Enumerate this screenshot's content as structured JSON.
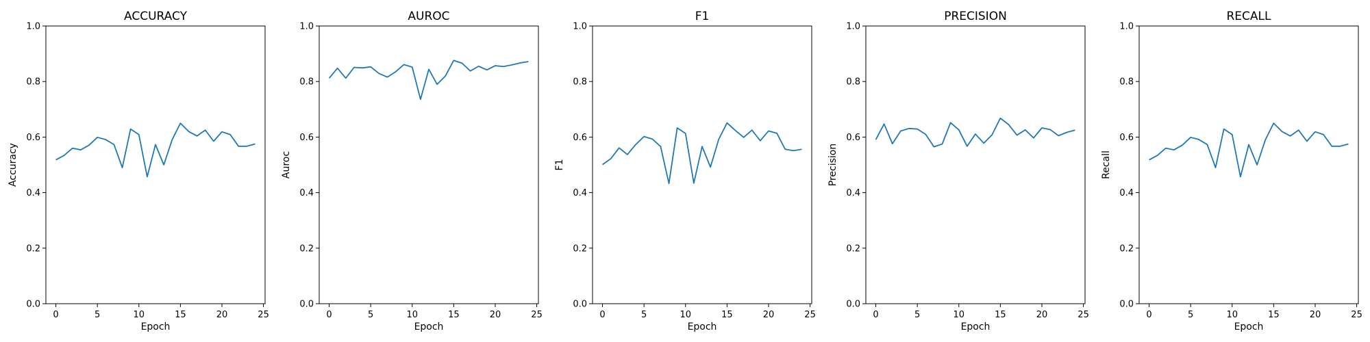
{
  "chart_data": [
    {
      "type": "line",
      "title": "ACCURACY",
      "xlabel": "Epoch",
      "ylabel": "Accuracy",
      "xlim": [
        -1.2,
        25.2
      ],
      "ylim": [
        0.0,
        1.0
      ],
      "xticks": [
        0,
        5,
        10,
        15,
        20,
        25
      ],
      "yticks": [
        0.0,
        0.2,
        0.4,
        0.6,
        0.8,
        1.0
      ],
      "grid": false,
      "x": [
        0,
        1,
        2,
        3,
        4,
        5,
        6,
        7,
        8,
        9,
        10,
        11,
        12,
        13,
        14,
        15,
        16,
        17,
        18,
        19,
        20,
        21,
        22,
        23,
        24
      ],
      "series": [
        {
          "color": "#1f77b4",
          "values": [
            0.518,
            0.534,
            0.56,
            0.554,
            0.571,
            0.599,
            0.591,
            0.573,
            0.49,
            0.629,
            0.609,
            0.457,
            0.573,
            0.5,
            0.59,
            0.65,
            0.62,
            0.604,
            0.625,
            0.585,
            0.619,
            0.609,
            0.567,
            0.567,
            0.575
          ]
        }
      ]
    },
    {
      "type": "line",
      "title": "AUROC",
      "xlabel": "Epoch",
      "ylabel": "Auroc",
      "xlim": [
        -1.2,
        25.2
      ],
      "ylim": [
        0.0,
        1.0
      ],
      "xticks": [
        0,
        5,
        10,
        15,
        20,
        25
      ],
      "yticks": [
        0.0,
        0.2,
        0.4,
        0.6,
        0.8,
        1.0
      ],
      "grid": false,
      "x": [
        0,
        1,
        2,
        3,
        4,
        5,
        6,
        7,
        8,
        9,
        10,
        11,
        12,
        13,
        14,
        15,
        16,
        17,
        18,
        19,
        20,
        21,
        22,
        23,
        24
      ],
      "series": [
        {
          "color": "#1f77b4",
          "values": [
            0.812,
            0.848,
            0.812,
            0.851,
            0.849,
            0.853,
            0.829,
            0.816,
            0.835,
            0.861,
            0.852,
            0.736,
            0.844,
            0.79,
            0.82,
            0.876,
            0.866,
            0.838,
            0.855,
            0.842,
            0.857,
            0.854,
            0.86,
            0.867,
            0.872
          ]
        }
      ]
    },
    {
      "type": "line",
      "title": "F1",
      "xlabel": "Epoch",
      "ylabel": "F1",
      "xlim": [
        -1.2,
        25.2
      ],
      "ylim": [
        0.0,
        1.0
      ],
      "xticks": [
        0,
        5,
        10,
        15,
        20,
        25
      ],
      "yticks": [
        0.0,
        0.2,
        0.4,
        0.6,
        0.8,
        1.0
      ],
      "grid": false,
      "x": [
        0,
        1,
        2,
        3,
        4,
        5,
        6,
        7,
        8,
        9,
        10,
        11,
        12,
        13,
        14,
        15,
        16,
        17,
        18,
        19,
        20,
        21,
        22,
        23,
        24
      ],
      "series": [
        {
          "color": "#1f77b4",
          "values": [
            0.501,
            0.522,
            0.561,
            0.537,
            0.573,
            0.602,
            0.593,
            0.566,
            0.433,
            0.633,
            0.613,
            0.434,
            0.566,
            0.492,
            0.592,
            0.651,
            0.624,
            0.599,
            0.625,
            0.587,
            0.622,
            0.614,
            0.556,
            0.551,
            0.556
          ]
        }
      ]
    },
    {
      "type": "line",
      "title": "PRECISION",
      "xlabel": "Epoch",
      "ylabel": "Precision",
      "xlim": [
        -1.2,
        25.2
      ],
      "ylim": [
        0.0,
        1.0
      ],
      "xticks": [
        0,
        5,
        10,
        15,
        20,
        25
      ],
      "yticks": [
        0.0,
        0.2,
        0.4,
        0.6,
        0.8,
        1.0
      ],
      "grid": false,
      "x": [
        0,
        1,
        2,
        3,
        4,
        5,
        6,
        7,
        8,
        9,
        10,
        11,
        12,
        13,
        14,
        15,
        16,
        17,
        18,
        19,
        20,
        21,
        22,
        23,
        24
      ],
      "series": [
        {
          "color": "#1f77b4",
          "values": [
            0.591,
            0.647,
            0.576,
            0.622,
            0.631,
            0.629,
            0.61,
            0.565,
            0.575,
            0.652,
            0.626,
            0.567,
            0.611,
            0.578,
            0.608,
            0.668,
            0.645,
            0.607,
            0.626,
            0.597,
            0.633,
            0.627,
            0.605,
            0.617,
            0.625
          ]
        }
      ]
    },
    {
      "type": "line",
      "title": "RECALL",
      "xlabel": "Epoch",
      "ylabel": "Recall",
      "xlim": [
        -1.2,
        25.2
      ],
      "ylim": [
        0.0,
        1.0
      ],
      "xticks": [
        0,
        5,
        10,
        15,
        20,
        25
      ],
      "yticks": [
        0.0,
        0.2,
        0.4,
        0.6,
        0.8,
        1.0
      ],
      "grid": false,
      "x": [
        0,
        1,
        2,
        3,
        4,
        5,
        6,
        7,
        8,
        9,
        10,
        11,
        12,
        13,
        14,
        15,
        16,
        17,
        18,
        19,
        20,
        21,
        22,
        23,
        24
      ],
      "series": [
        {
          "color": "#1f77b4",
          "values": [
            0.518,
            0.534,
            0.56,
            0.554,
            0.571,
            0.599,
            0.591,
            0.573,
            0.49,
            0.629,
            0.609,
            0.457,
            0.573,
            0.5,
            0.59,
            0.65,
            0.62,
            0.604,
            0.625,
            0.585,
            0.619,
            0.609,
            0.567,
            0.567,
            0.575
          ]
        }
      ]
    }
  ]
}
